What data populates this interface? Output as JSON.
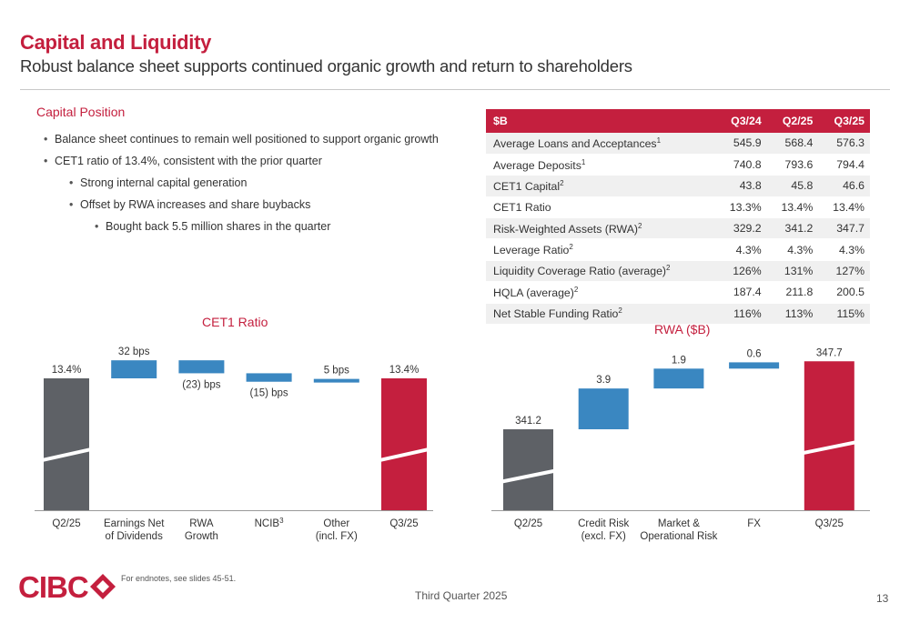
{
  "header": {
    "title": "Capital and Liquidity",
    "subtitle": "Robust balance sheet supports continued organic growth and return to shareholders"
  },
  "capital_position": {
    "heading": "Capital Position",
    "bullets": [
      {
        "level": 1,
        "text": "Balance sheet continues to remain well positioned to support organic growth"
      },
      {
        "level": 1,
        "text": "CET1 ratio of 13.4%, consistent with the prior quarter"
      },
      {
        "level": 2,
        "text": "Strong internal capital generation"
      },
      {
        "level": 2,
        "text": "Offset by RWA increases and share buybacks"
      },
      {
        "level": 3,
        "text": "Bought back 5.5 million shares in the quarter"
      }
    ]
  },
  "table": {
    "headers": [
      "$B",
      "Q3/24",
      "Q2/25",
      "Q3/25"
    ],
    "rows": [
      {
        "label": "Average Loans and Acceptances",
        "sup": "1",
        "values": [
          "545.9",
          "568.4",
          "576.3"
        ]
      },
      {
        "label": "Average Deposits",
        "sup": "1",
        "values": [
          "740.8",
          "793.6",
          "794.4"
        ]
      },
      {
        "label": "CET1 Capital",
        "sup": "2",
        "values": [
          "43.8",
          "45.8",
          "46.6"
        ]
      },
      {
        "label": "CET1 Ratio",
        "sup": "",
        "values": [
          "13.3%",
          "13.4%",
          "13.4%"
        ]
      },
      {
        "label": "Risk-Weighted Assets (RWA)",
        "sup": "2",
        "values": [
          "329.2",
          "341.2",
          "347.7"
        ]
      },
      {
        "label": "Leverage Ratio",
        "sup": "2",
        "values": [
          "4.3%",
          "4.3%",
          "4.3%"
        ]
      },
      {
        "label": "Liquidity Coverage Ratio (average)",
        "sup": "2",
        "values": [
          "126%",
          "131%",
          "127%"
        ]
      },
      {
        "label": "HQLA (average)",
        "sup": "2",
        "values": [
          "187.4",
          "211.8",
          "200.5"
        ]
      },
      {
        "label": "Net Stable Funding Ratio",
        "sup": "2",
        "values": [
          "116%",
          "113%",
          "115%"
        ]
      }
    ]
  },
  "chart_data": [
    {
      "type": "bar",
      "title": "CET1 Ratio",
      "categories": [
        {
          "line1": "Q2/25",
          "line2": ""
        },
        {
          "line1": "Earnings Net",
          "line2": "of Dividends"
        },
        {
          "line1": "RWA",
          "line2": "Growth"
        },
        {
          "line1": "NCIB",
          "sup": "3",
          "line2": ""
        },
        {
          "line1": "Other",
          "line2": "(incl. FX)"
        },
        {
          "line1": "Q3/25",
          "line2": ""
        }
      ],
      "values": [
        13.4,
        0.32,
        -0.23,
        -0.15,
        0.05,
        13.4
      ],
      "data_labels": [
        "13.4%",
        "32 bps",
        "(23) bps",
        "(15) bps",
        "5 bps",
        "13.4%"
      ],
      "kinds": [
        "total",
        "delta",
        "delta",
        "delta",
        "delta",
        "total"
      ],
      "axis_break": true,
      "colors": {
        "start": "#5e6166",
        "delta": "#3a87c1",
        "end": "#c41f3e"
      }
    },
    {
      "type": "bar",
      "title": "RWA ($B)",
      "categories": [
        {
          "line1": "Q2/25",
          "line2": ""
        },
        {
          "line1": "Credit Risk",
          "line2": "(excl. FX)"
        },
        {
          "line1": "Market &",
          "line2": "Operational Risk"
        },
        {
          "line1": "FX",
          "line2": ""
        },
        {
          "line1": "Q3/25",
          "line2": ""
        }
      ],
      "values": [
        341.2,
        3.9,
        1.9,
        0.6,
        347.7
      ],
      "data_labels": [
        "341.2",
        "3.9",
        "1.9",
        "0.6",
        "347.7"
      ],
      "kinds": [
        "total",
        "delta",
        "delta",
        "delta",
        "total"
      ],
      "axis_break": true,
      "colors": {
        "start": "#5e6166",
        "delta": "#3a87c1",
        "end": "#c41f3e"
      }
    }
  ],
  "footer": {
    "brand": "CIBC",
    "footnote": "For endnotes, see slides 45-51.",
    "quarter": "Third Quarter 2025",
    "page": "13"
  }
}
